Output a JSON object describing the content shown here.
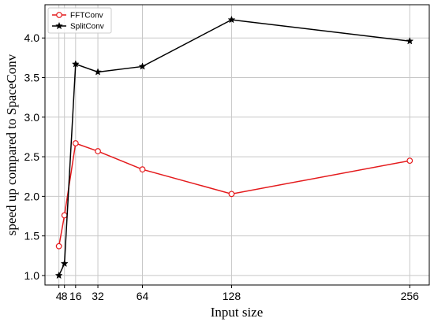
{
  "chart_data": {
    "type": "line",
    "xlabel": "Input size",
    "ylabel": "speed up compared to SpaceConv",
    "xlim": [
      -6,
      270
    ],
    "ylim": [
      0.88,
      4.42
    ],
    "xticks": [
      4,
      8,
      16,
      32,
      64,
      128,
      256
    ],
    "xtick_labels": [
      "4",
      "8",
      "16",
      "32",
      "64",
      "128",
      "256"
    ],
    "yticks": [
      1.0,
      1.5,
      2.0,
      2.5,
      3.0,
      3.5,
      4.0
    ],
    "ytick_labels": [
      "1.0",
      "1.5",
      "2.0",
      "2.5",
      "3.0",
      "3.5",
      "4.0"
    ],
    "grid": true,
    "legend_position": "top-left",
    "series": [
      {
        "name": "FFTConv",
        "color": "#e41a1c",
        "marker": "open-circle",
        "x": [
          4,
          8,
          16,
          32,
          64,
          128,
          256
        ],
        "values": [
          1.37,
          1.76,
          2.67,
          2.57,
          2.34,
          2.03,
          2.45
        ]
      },
      {
        "name": "SplitConv",
        "color": "#000000",
        "marker": "star",
        "x": [
          4,
          8,
          16,
          32,
          64,
          128,
          256
        ],
        "values": [
          1.0,
          1.15,
          3.67,
          3.57,
          3.64,
          4.23,
          3.96
        ]
      }
    ]
  }
}
